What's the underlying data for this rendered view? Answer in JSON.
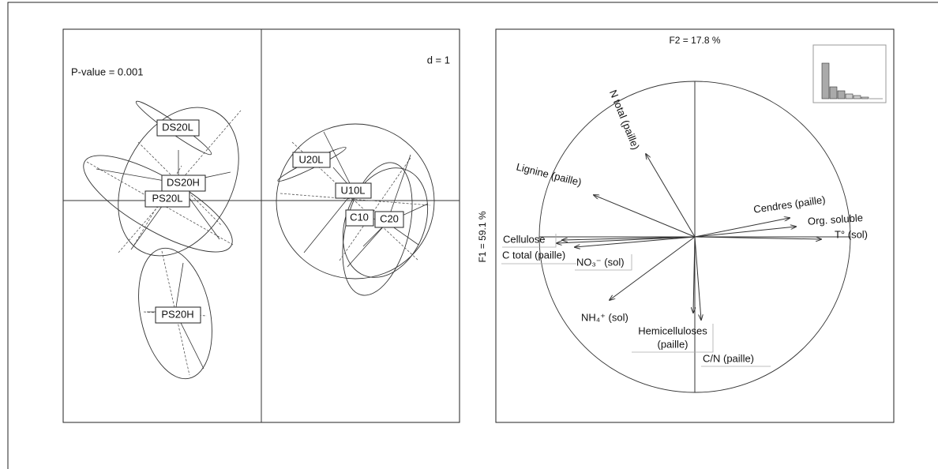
{
  "left_panel": {
    "pvalue": "P-value = 0.001",
    "scale": "d = 1",
    "groups": [
      "DS20L",
      "DS20H",
      "PS20L",
      "PS20H",
      "U20L",
      "U10L",
      "C10",
      "C20"
    ]
  },
  "right_panel": {
    "x_axis": "F2 = 17.8 %",
    "y_axis": "F1 = 59.1 %",
    "variables": [
      "N total (paille)",
      "Lignine (paille)",
      "Cendres (paille)",
      "Org. soluble",
      "T° (sol)",
      "Cellulose",
      "C total (paille)",
      "NO₃⁻ (sol)",
      "NH₄⁺ (sol)",
      "Hemicelluloses",
      "(paille)",
      "C/N (paille)"
    ]
  }
}
